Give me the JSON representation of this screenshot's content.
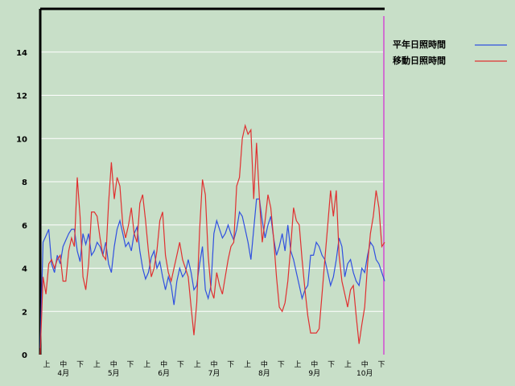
{
  "chart_data": {
    "type": "line",
    "title": "",
    "xlabel": "",
    "ylabel": "",
    "ylim": [
      0,
      16
    ],
    "yticks": [
      0,
      2,
      4,
      6,
      8,
      10,
      12,
      14
    ],
    "grid": true,
    "legend_placement": "top-right",
    "x_sub_labels": [
      "上",
      "中",
      "下"
    ],
    "months": [
      "4月",
      "5月",
      "6月",
      "7月",
      "8月",
      "9月",
      "10月"
    ],
    "series": [
      {
        "name": "平年日照時間",
        "color": "#3050e0",
        "values": [
          0.3,
          5.2,
          5.5,
          5.8,
          4.2,
          3.8,
          4.6,
          4.2,
          5.0,
          5.3,
          5.6,
          5.8,
          5.8,
          4.8,
          4.3,
          5.6,
          5.1,
          5.6,
          4.6,
          4.8,
          5.2,
          5.0,
          4.6,
          5.2,
          4.2,
          3.8,
          5.0,
          5.8,
          6.2,
          5.6,
          5.0,
          5.2,
          4.8,
          5.6,
          5.9,
          4.8,
          4.0,
          3.5,
          3.8,
          4.5,
          4.8,
          4.0,
          4.3,
          3.6,
          3.0,
          3.6,
          3.2,
          2.3,
          3.4,
          4.0,
          3.6,
          3.8,
          4.4,
          3.8,
          3.0,
          3.2,
          4.2,
          5.0,
          3.0,
          2.6,
          3.2,
          5.6,
          6.2,
          5.8,
          5.4,
          5.6,
          6.0,
          5.6,
          5.3,
          5.8,
          6.6,
          6.4,
          5.8,
          5.2,
          4.4,
          5.8,
          7.2,
          7.2,
          6.2,
          5.4,
          6.0,
          6.4,
          5.4,
          4.6,
          5.0,
          5.6,
          4.8,
          6.0,
          4.8,
          4.4,
          3.8,
          3.2,
          2.6,
          3.0,
          3.2,
          4.6,
          4.6,
          5.2,
          5.0,
          4.6,
          4.4,
          3.8,
          3.2,
          3.6,
          4.4,
          5.4,
          5.0,
          3.6,
          4.2,
          4.4,
          3.8,
          3.4,
          3.2,
          4.0,
          3.8,
          4.6,
          5.2,
          5.0,
          4.4,
          4.2,
          3.8,
          3.4
        ]
      },
      {
        "name": "移動日照時間",
        "color": "#e03030",
        "values": [
          0.0,
          3.6,
          2.8,
          4.2,
          4.4,
          4.0,
          4.4,
          4.6,
          3.4,
          3.4,
          4.8,
          5.4,
          5.0,
          8.2,
          6.4,
          3.6,
          3.0,
          4.2,
          6.6,
          6.6,
          6.4,
          5.4,
          4.6,
          4.4,
          7.0,
          8.9,
          7.2,
          8.2,
          7.8,
          6.0,
          5.4,
          6.0,
          6.8,
          5.6,
          5.2,
          7.0,
          7.4,
          6.2,
          4.8,
          3.6,
          4.0,
          4.8,
          6.2,
          6.6,
          4.6,
          3.8,
          3.4,
          4.0,
          4.6,
          5.2,
          4.4,
          4.0,
          3.6,
          2.2,
          0.9,
          2.4,
          5.8,
          8.1,
          7.4,
          4.6,
          3.0,
          2.6,
          3.8,
          3.2,
          2.8,
          3.6,
          4.4,
          5.0,
          5.2,
          7.8,
          8.2,
          10.0,
          10.6,
          10.2,
          10.4,
          7.2,
          9.8,
          7.2,
          5.2,
          6.2,
          7.4,
          6.8,
          5.4,
          3.6,
          2.2,
          2.0,
          2.4,
          3.4,
          5.0,
          6.8,
          6.2,
          6.0,
          4.4,
          3.0,
          1.8,
          1.0,
          1.0,
          1.0,
          1.2,
          2.8,
          4.4,
          6.0,
          7.6,
          6.4,
          7.6,
          4.6,
          3.4,
          2.8,
          2.2,
          3.0,
          3.2,
          1.8,
          0.5,
          1.4,
          2.2,
          4.2,
          5.6,
          6.4,
          7.6,
          6.8,
          5.0,
          5.2
        ]
      }
    ]
  },
  "legend_line_colors": [
    "#3050e0",
    "#e03030"
  ],
  "marker_color": "#d070d0"
}
